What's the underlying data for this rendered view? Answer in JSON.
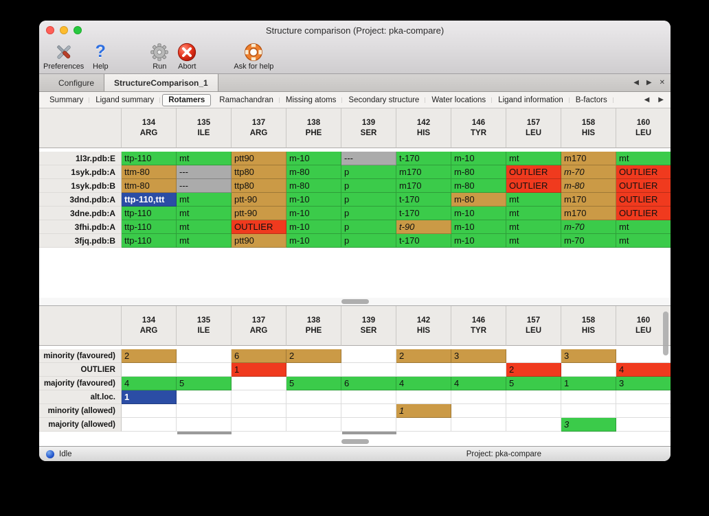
{
  "window": {
    "title": "Structure comparison (Project: pka-compare)"
  },
  "toolbar": {
    "items": [
      {
        "label": "Preferences"
      },
      {
        "label": "Help"
      },
      {
        "label": "Run"
      },
      {
        "label": "Abort"
      },
      {
        "label": "Ask for help"
      }
    ]
  },
  "tabs": {
    "items": [
      {
        "label": "Configure",
        "active": false
      },
      {
        "label": "StructureComparison_1",
        "active": true
      }
    ]
  },
  "subtabs": {
    "items": [
      "Summary",
      "Ligand summary",
      "Rotamers",
      "Ramachandran",
      "Missing atoms",
      "Secondary structure",
      "Water locations",
      "Ligand information",
      "B-factors"
    ],
    "active": "Rotamers"
  },
  "icons": {
    "back_arrow": "◀",
    "forward_arrow": "▶",
    "close_tab": "✕"
  },
  "colors": {
    "green": "#3bcb4a",
    "tan": "#cb9a46",
    "red": "#f03a1e",
    "gray": "#ababab",
    "blue": "#2b4da5"
  },
  "columns": [
    {
      "num": "134",
      "res": "ARG"
    },
    {
      "num": "135",
      "res": "ILE"
    },
    {
      "num": "137",
      "res": "ARG"
    },
    {
      "num": "138",
      "res": "PHE"
    },
    {
      "num": "139",
      "res": "SER"
    },
    {
      "num": "142",
      "res": "HIS"
    },
    {
      "num": "146",
      "res": "TYR"
    },
    {
      "num": "157",
      "res": "LEU"
    },
    {
      "num": "158",
      "res": "HIS"
    },
    {
      "num": "160",
      "res": "LEU"
    }
  ],
  "structures_table": {
    "rows": [
      {
        "label": "1l3r.pdb:E",
        "cells": [
          {
            "text": "ttp-110",
            "color": "green"
          },
          {
            "text": "mt",
            "color": "green"
          },
          {
            "text": "ptt90",
            "color": "tan"
          },
          {
            "text": "m-10",
            "color": "green"
          },
          {
            "text": "---",
            "color": "gray"
          },
          {
            "text": "t-170",
            "color": "green"
          },
          {
            "text": "m-10",
            "color": "green"
          },
          {
            "text": "mt",
            "color": "green"
          },
          {
            "text": "m170",
            "color": "tan"
          },
          {
            "text": "mt",
            "color": "green"
          }
        ]
      },
      {
        "label": "1syk.pdb:A",
        "cells": [
          {
            "text": "ttm-80",
            "color": "tan"
          },
          {
            "text": "---",
            "color": "gray"
          },
          {
            "text": "ttp80",
            "color": "tan"
          },
          {
            "text": "m-80",
            "color": "green"
          },
          {
            "text": "p",
            "color": "green"
          },
          {
            "text": "m170",
            "color": "green"
          },
          {
            "text": "m-80",
            "color": "green"
          },
          {
            "text": "OUTLIER",
            "color": "red"
          },
          {
            "text": "m-70",
            "color": "tan",
            "italic": true
          },
          {
            "text": "OUTLIER",
            "color": "red"
          }
        ]
      },
      {
        "label": "1syk.pdb:B",
        "cells": [
          {
            "text": "ttm-80",
            "color": "tan"
          },
          {
            "text": "---",
            "color": "gray"
          },
          {
            "text": "ttp80",
            "color": "tan"
          },
          {
            "text": "m-80",
            "color": "green"
          },
          {
            "text": "p",
            "color": "green"
          },
          {
            "text": "m170",
            "color": "green"
          },
          {
            "text": "m-80",
            "color": "green"
          },
          {
            "text": "OUTLIER",
            "color": "red"
          },
          {
            "text": "m-80",
            "color": "tan",
            "italic": true
          },
          {
            "text": "OUTLIER",
            "color": "red"
          }
        ]
      },
      {
        "label": "3dnd.pdb:A",
        "cells": [
          {
            "text": "ttp-110,ttt",
            "color": "blue"
          },
          {
            "text": "mt",
            "color": "green"
          },
          {
            "text": "ptt-90",
            "color": "tan"
          },
          {
            "text": "m-10",
            "color": "green"
          },
          {
            "text": "p",
            "color": "green"
          },
          {
            "text": "t-170",
            "color": "green"
          },
          {
            "text": "m-80",
            "color": "tan"
          },
          {
            "text": "mt",
            "color": "green"
          },
          {
            "text": "m170",
            "color": "tan"
          },
          {
            "text": "OUTLIER",
            "color": "red"
          }
        ]
      },
      {
        "label": "3dne.pdb:A",
        "cells": [
          {
            "text": "ttp-110",
            "color": "green"
          },
          {
            "text": "mt",
            "color": "green"
          },
          {
            "text": "ptt-90",
            "color": "tan"
          },
          {
            "text": "m-10",
            "color": "green"
          },
          {
            "text": "p",
            "color": "green"
          },
          {
            "text": "t-170",
            "color": "green"
          },
          {
            "text": "m-10",
            "color": "green"
          },
          {
            "text": "mt",
            "color": "green"
          },
          {
            "text": "m170",
            "color": "tan"
          },
          {
            "text": "OUTLIER",
            "color": "red"
          }
        ]
      },
      {
        "label": "3fhi.pdb:A",
        "cells": [
          {
            "text": "ttp-110",
            "color": "green"
          },
          {
            "text": "mt",
            "color": "green"
          },
          {
            "text": "OUTLIER",
            "color": "red"
          },
          {
            "text": "m-10",
            "color": "green"
          },
          {
            "text": "p",
            "color": "green"
          },
          {
            "text": "t-90",
            "color": "tan",
            "italic": true
          },
          {
            "text": "m-10",
            "color": "green"
          },
          {
            "text": "mt",
            "color": "green"
          },
          {
            "text": "m-70",
            "color": "green",
            "italic": true
          },
          {
            "text": "mt",
            "color": "green"
          }
        ]
      },
      {
        "label": "3fjq.pdb:B",
        "cells": [
          {
            "text": "ttp-110",
            "color": "green"
          },
          {
            "text": "mt",
            "color": "green"
          },
          {
            "text": "ptt90",
            "color": "tan"
          },
          {
            "text": "m-10",
            "color": "green"
          },
          {
            "text": "p",
            "color": "green"
          },
          {
            "text": "t-170",
            "color": "green"
          },
          {
            "text": "m-10",
            "color": "green"
          },
          {
            "text": "mt",
            "color": "green"
          },
          {
            "text": "m-70",
            "color": "green"
          },
          {
            "text": "mt",
            "color": "green"
          }
        ]
      }
    ]
  },
  "summary_table": {
    "rows": [
      {
        "label": "minority (favoured)",
        "cells": [
          {
            "text": "2",
            "color": "tan"
          },
          null,
          {
            "text": "6",
            "color": "tan"
          },
          {
            "text": "2",
            "color": "tan"
          },
          null,
          {
            "text": "2",
            "color": "tan"
          },
          {
            "text": "3",
            "color": "tan"
          },
          null,
          {
            "text": "3",
            "color": "tan"
          },
          null
        ]
      },
      {
        "label": "OUTLIER",
        "cells": [
          null,
          null,
          {
            "text": "1",
            "color": "red"
          },
          null,
          null,
          null,
          null,
          {
            "text": "2",
            "color": "red"
          },
          null,
          {
            "text": "4",
            "color": "red"
          }
        ]
      },
      {
        "label": "majority (favoured)",
        "cells": [
          {
            "text": "4",
            "color": "green"
          },
          {
            "text": "5",
            "color": "green"
          },
          null,
          {
            "text": "5",
            "color": "green"
          },
          {
            "text": "6",
            "color": "green"
          },
          {
            "text": "4",
            "color": "green"
          },
          {
            "text": "4",
            "color": "green"
          },
          {
            "text": "5",
            "color": "green"
          },
          {
            "text": "1",
            "color": "green"
          },
          {
            "text": "3",
            "color": "green"
          }
        ]
      },
      {
        "label": "alt.loc.",
        "cells": [
          {
            "text": "1",
            "color": "blue"
          },
          null,
          null,
          null,
          null,
          null,
          null,
          null,
          null,
          null
        ]
      },
      {
        "label": "minority (allowed)",
        "cells": [
          null,
          null,
          null,
          null,
          null,
          {
            "text": "1",
            "color": "tan",
            "italic": true
          },
          null,
          null,
          null,
          null
        ]
      },
      {
        "label": "majority (allowed)",
        "cells": [
          null,
          null,
          null,
          null,
          null,
          null,
          null,
          null,
          {
            "text": "3",
            "color": "green",
            "italic": true
          },
          null
        ]
      }
    ]
  },
  "statusbar": {
    "left": "Idle",
    "right": "Project: pka-compare"
  }
}
